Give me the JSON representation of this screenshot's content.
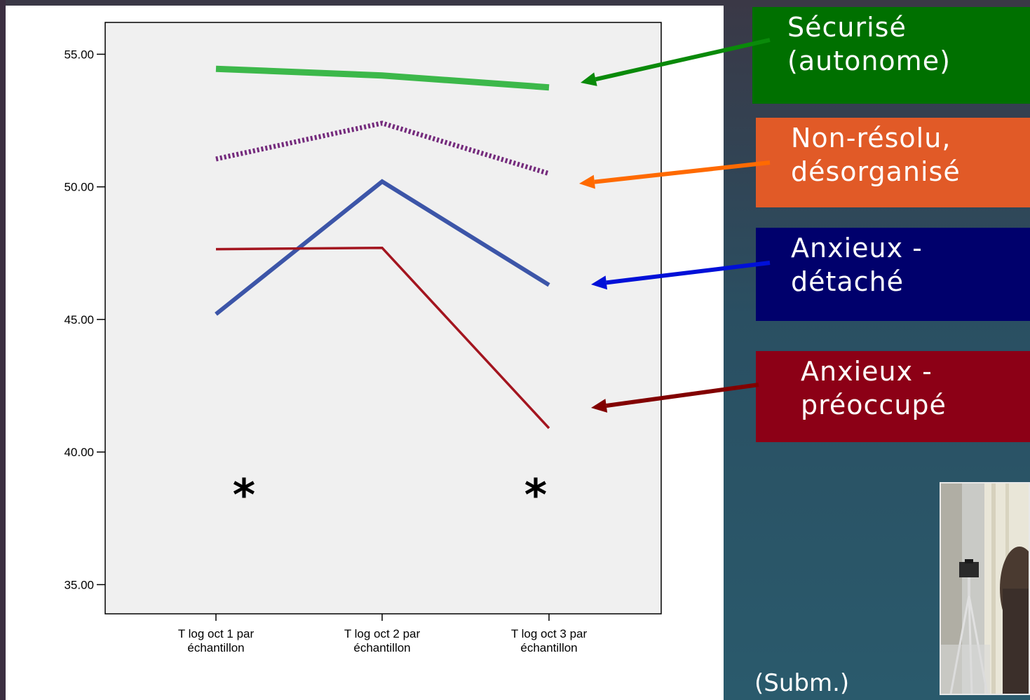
{
  "chart_data": {
    "type": "line",
    "categories": [
      "T log oct 1 par\néchantillon",
      "T log oct 2 par\néchantillon",
      "T log oct 3 par\néchantillon"
    ],
    "yticks": [
      "35.00",
      "40.00",
      "45.00",
      "50.00",
      "55.00"
    ],
    "ylim": [
      33.9,
      56.2
    ],
    "series": [
      {
        "name": "Sécurisé (autonome)",
        "values": [
          54.45,
          54.2,
          53.75
        ],
        "color": "#3cb84a",
        "style": "solid-thick"
      },
      {
        "name": "Non-résolu, désorganisé",
        "values": [
          51.05,
          52.4,
          50.5
        ],
        "color": "#742a7c",
        "style": "dotted"
      },
      {
        "name": "Anxieux - détaché",
        "values": [
          45.2,
          50.2,
          46.3
        ],
        "color": "#3c55a8",
        "style": "solid-medium"
      },
      {
        "name": "Anxieux - préoccupé",
        "values": [
          47.65,
          47.7,
          40.9
        ],
        "color": "#a3151f",
        "style": "solid-thin"
      }
    ],
    "significance_marks": [
      "*",
      "*"
    ],
    "grid": false,
    "legend": "right"
  },
  "legend": {
    "securise": {
      "line1": "Sécurisé",
      "line2": "(autonome)",
      "color": "#007000",
      "arrow_color": "#0a8a0a"
    },
    "nonresolu": {
      "line1": "Non-résolu,",
      "line2": "désorganisé",
      "color": "#e15a27",
      "arrow_color": "#ff6a00"
    },
    "detache": {
      "line1": "Anxieux -",
      "line2": "détaché",
      "color": "#00006c",
      "arrow_color": "#0010d8"
    },
    "preoccupe": {
      "line1": "Anxieux  -",
      "line2": "préoccupé",
      "color": "#8c0016",
      "arrow_color": "#820000"
    }
  },
  "footnote": "(Subm.)",
  "photo": {
    "icon": "camera-tripod-photo"
  }
}
